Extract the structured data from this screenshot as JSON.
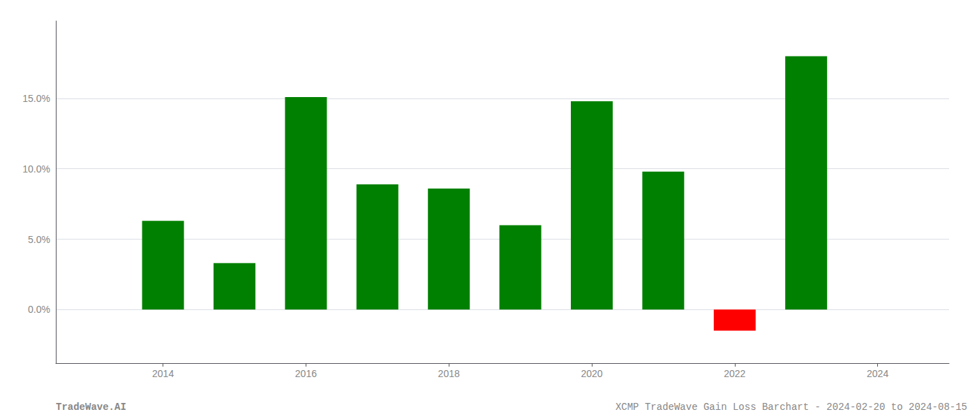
{
  "chart_data": {
    "type": "bar",
    "x": [
      2014,
      2015,
      2016,
      2017,
      2018,
      2019,
      2020,
      2021,
      2022,
      2023
    ],
    "values": [
      0.063,
      0.033,
      0.151,
      0.089,
      0.086,
      0.06,
      0.148,
      0.098,
      -0.015,
      0.18
    ],
    "colors": [
      "#008000",
      "#008000",
      "#008000",
      "#008000",
      "#008000",
      "#008000",
      "#008000",
      "#008000",
      "#ff0000",
      "#008000"
    ],
    "xlim": [
      2012.5,
      2025.0
    ],
    "xticks": [
      2014,
      2016,
      2018,
      2020,
      2022,
      2024
    ],
    "ylim": [
      -0.038,
      0.205
    ],
    "yticks": [
      {
        "value": 0.0,
        "label": "0.0%"
      },
      {
        "value": 0.05,
        "label": "5.0%"
      },
      {
        "value": 0.1,
        "label": "10.0%"
      },
      {
        "value": 0.15,
        "label": "15.0%"
      }
    ],
    "grid": true,
    "annotations": [
      "TradeWave.AI",
      "XCMP TradeWave Gain Loss Barchart - 2024-02-20 to 2024-08-15"
    ]
  }
}
